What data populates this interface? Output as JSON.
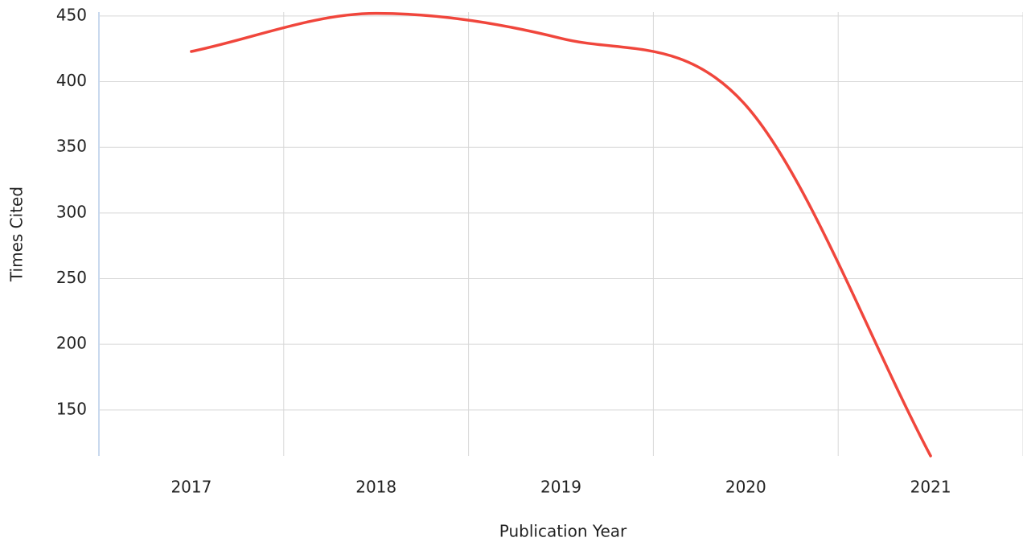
{
  "chart_data": {
    "type": "line",
    "x_label": "Publication Year",
    "y_label": "Times Cited",
    "categories": [
      "2017",
      "2018",
      "2019",
      "2020",
      "2021"
    ],
    "series": [
      {
        "name": "Times Cited",
        "color": "#f0463c",
        "values": [
          423,
          452,
          433,
          382,
          115
        ]
      }
    ],
    "ylim": [
      115,
      453
    ],
    "yticks": [
      150,
      200,
      250,
      300,
      350,
      400,
      450
    ],
    "grid": true,
    "smooth": true
  }
}
